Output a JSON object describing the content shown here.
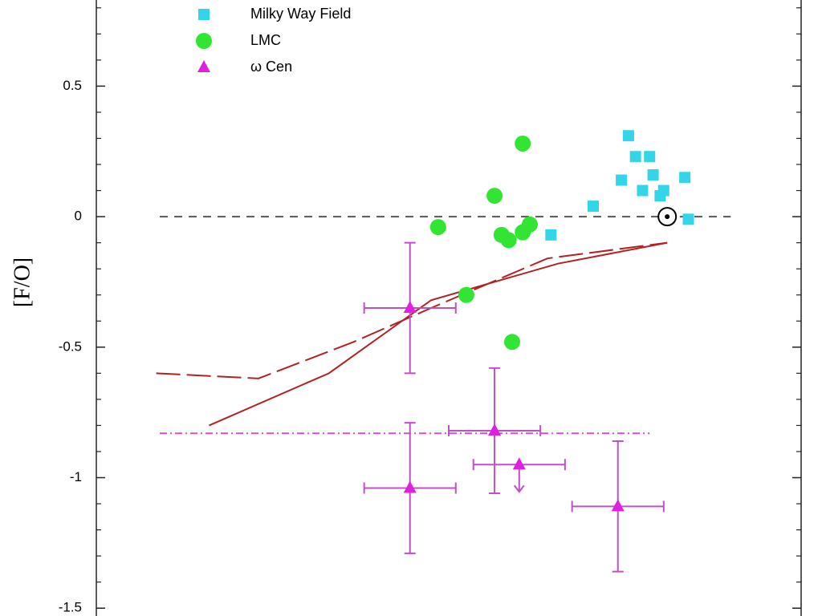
{
  "chart_data": {
    "type": "scatter",
    "ylabel": "[F/O]",
    "xlim": [
      -1.6,
      0.4
    ],
    "ylim": [
      -1.53,
      0.83
    ],
    "yticks": [
      0.5,
      0,
      -0.5,
      -1,
      -1.5
    ],
    "yminorticks": [
      -1.4,
      -1.3,
      -1.2,
      -1.1,
      -0.9,
      -0.8,
      -0.7,
      -0.6,
      -0.4,
      -0.3,
      -0.2,
      -0.1,
      0.1,
      0.2,
      0.3,
      0.4,
      0.6,
      0.7,
      0.8
    ],
    "series": [
      {
        "name": "Milky Way Field",
        "color": "#33d6e8",
        "marker": "square",
        "x": [
          -0.09,
          -0.07,
          -0.03,
          -0.02,
          -0.11,
          -0.05,
          0.01,
          0.0,
          0.07,
          0.08,
          -0.19,
          -0.31
        ],
        "y": [
          0.31,
          0.23,
          0.23,
          0.16,
          0.14,
          0.1,
          0.1,
          0.08,
          0.15,
          -0.01,
          0.04,
          -0.07
        ]
      },
      {
        "name": "LMC",
        "color": "#33e533",
        "marker": "circle",
        "x": [
          -0.39,
          -0.47,
          -0.63,
          -0.45,
          -0.43,
          -0.39,
          -0.37,
          -0.55,
          -0.42
        ],
        "y": [
          0.28,
          0.08,
          -0.04,
          -0.07,
          -0.09,
          -0.06,
          -0.03,
          -0.3,
          -0.48
        ]
      },
      {
        "name": "ω Cen",
        "color": "#e020e0",
        "errcolor": "#c050c8",
        "marker": "triangle",
        "x": [
          -0.71,
          -0.71,
          -0.47,
          -0.4,
          -0.12
        ],
        "y": [
          -0.35,
          -1.04,
          -0.82,
          -0.95,
          -1.11
        ],
        "xerr": [
          0.13,
          0.13,
          0.13,
          0.13,
          0.13
        ],
        "yerr": [
          0.25,
          0.25,
          0.24,
          null,
          0.25
        ],
        "upper_limit": [
          false,
          false,
          false,
          true,
          false
        ]
      }
    ],
    "solar": {
      "x": 0.02,
      "y": 0
    },
    "lines": [
      {
        "color": "#555555",
        "style": "dashed",
        "x": [
          -1.42,
          0.2
        ],
        "y": [
          0,
          0
        ]
      },
      {
        "color": "#d050d0",
        "style": "dashdot",
        "x": [
          -1.42,
          -0.03
        ],
        "y": [
          -0.83,
          -0.83
        ]
      },
      {
        "color": "#b22222",
        "style": "solid",
        "x": [
          -1.28,
          -0.94,
          -0.65,
          -0.29,
          0.02
        ],
        "y": [
          -0.8,
          -0.6,
          -0.32,
          -0.18,
          -0.1
        ]
      },
      {
        "color": "#b22222",
        "style": "longdash",
        "x": [
          -1.43,
          -1.14,
          -0.87,
          -0.65,
          -0.32,
          0.02
        ],
        "y": [
          -0.6,
          -0.62,
          -0.48,
          -0.35,
          -0.16,
          -0.1
        ]
      }
    ]
  }
}
